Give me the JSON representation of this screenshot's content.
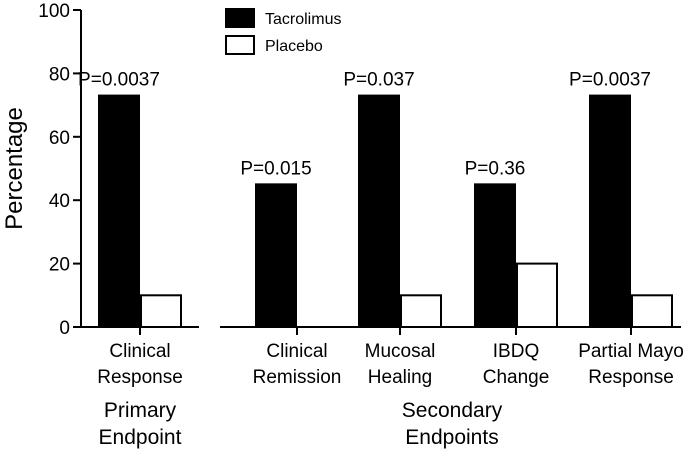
{
  "chart_data": {
    "type": "bar",
    "ylabel": "Percentage",
    "ylim": [
      0,
      100
    ],
    "yticks": [
      0,
      20,
      40,
      60,
      80,
      100
    ],
    "grid": false,
    "legend_position": "top-center",
    "categories": [
      {
        "lines": [
          "Clinical",
          "Response"
        ],
        "p": "P=0.0037",
        "group": "primary"
      },
      {
        "lines": [
          "Clinical",
          "Remission"
        ],
        "p": "P=0.015",
        "group": "secondary"
      },
      {
        "lines": [
          "Mucosal",
          "Healing"
        ],
        "p": "P=0.037",
        "group": "secondary"
      },
      {
        "lines": [
          "IBDQ",
          "Change"
        ],
        "p": "P=0.36",
        "group": "secondary"
      },
      {
        "lines": [
          "Partial Mayo",
          "Response"
        ],
        "p": "P=0.0037",
        "group": "secondary"
      }
    ],
    "series": [
      {
        "name": "Tacrolimus",
        "color": "#000000",
        "values": [
          73,
          45,
          73,
          45,
          73
        ]
      },
      {
        "name": "Placebo",
        "color": "#ffffff",
        "values": [
          10,
          0,
          10,
          20,
          10
        ]
      }
    ],
    "groups": [
      {
        "key": "primary",
        "lines": [
          "Primary",
          "Endpoint"
        ]
      },
      {
        "key": "secondary",
        "lines": [
          "Secondary",
          "Endpoints"
        ]
      }
    ]
  }
}
